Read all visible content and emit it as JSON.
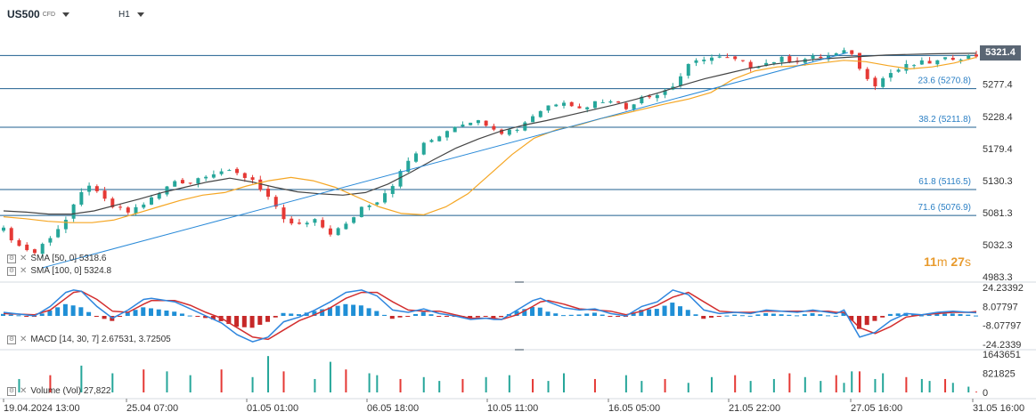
{
  "header": {
    "symbol": "US500",
    "instrument_type": "CFD",
    "timeframe": "H1"
  },
  "price_label": "5321.4",
  "countdown": {
    "minutes": "11",
    "minutes_unit": "m",
    "seconds": "27",
    "seconds_unit": "s"
  },
  "indicators": {
    "sma50": "SMA [50, 0] 5318.6",
    "sma100": "SMA [100, 0] 5324.8",
    "macd": "MACD [14, 30, 7] 2.67531, 3.72505",
    "volume": "Volume (Vol) 27,822"
  },
  "colors": {
    "up": "#26a69a",
    "down": "#e53935",
    "sma50": "#f5a623",
    "sma100": "#444444",
    "trendline": "#2a8ad8",
    "hline": "#1f5f8f",
    "macd_line": "#2e86de",
    "signal_line": "#d32f2f",
    "hist_pos": "#1f8fd6",
    "hist_neg": "#c62828",
    "timer_minutes": "#e89a2c",
    "timer_seconds": "#e89a2c"
  },
  "chart_data": [
    {
      "type": "candlestick",
      "title": "US500 CFD H1",
      "y_ticks": [
        "5321.4",
        "5277.4",
        "5228.4",
        "5179.4",
        "5130.3",
        "5081.3",
        "5032.3",
        "4983.3"
      ],
      "ylim": [
        4983.3,
        5326
      ],
      "x_ticks": [
        "19.04.2024 13:00",
        "25.04 07:00",
        "01.05 01:00",
        "06.05 18:00",
        "10.05 11:00",
        "16.05 05:00",
        "21.05 22:00",
        "27.05 16:00",
        "31.05 16:00"
      ],
      "last_price": 5321.4,
      "levels": [
        {
          "price": 5321.4,
          "label": ""
        },
        {
          "price": 5270.8,
          "label": "23.6 (5270.8)"
        },
        {
          "price": 5211.8,
          "label": "38.2 (5211.8)"
        },
        {
          "price": 5116.5,
          "label": "61.8 (5116.5)"
        },
        {
          "price": 5076.9,
          "label": "71.6 (5076.9)"
        }
      ],
      "close_path": [
        [
          0,
          5055
        ],
        [
          2,
          5030
        ],
        [
          4,
          5020
        ],
        [
          6,
          5045
        ],
        [
          8,
          5070
        ],
        [
          10,
          5110
        ],
        [
          11,
          5125
        ],
        [
          12,
          5110
        ],
        [
          14,
          5090
        ],
        [
          16,
          5082
        ],
        [
          18,
          5095
        ],
        [
          20,
          5110
        ],
        [
          22,
          5130
        ],
        [
          24,
          5128
        ],
        [
          26,
          5140
        ],
        [
          28,
          5145
        ],
        [
          30,
          5140
        ],
        [
          32,
          5132
        ],
        [
          34,
          5105
        ],
        [
          36,
          5068
        ],
        [
          38,
          5062
        ],
        [
          40,
          5068
        ],
        [
          42,
          5050
        ],
        [
          44,
          5062
        ],
        [
          46,
          5090
        ],
        [
          48,
          5100
        ],
        [
          50,
          5125
        ],
        [
          52,
          5160
        ],
        [
          54,
          5185
        ],
        [
          56,
          5200
        ],
        [
          58,
          5215
        ],
        [
          60,
          5222
        ],
        [
          62,
          5218
        ],
        [
          64,
          5205
        ],
        [
          66,
          5210
        ],
        [
          68,
          5230
        ],
        [
          70,
          5245
        ],
        [
          72,
          5253
        ],
        [
          74,
          5240
        ],
        [
          76,
          5250
        ],
        [
          78,
          5255
        ],
        [
          80,
          5240
        ],
        [
          82,
          5260
        ],
        [
          84,
          5262
        ],
        [
          86,
          5275
        ],
        [
          88,
          5305
        ],
        [
          90,
          5318
        ],
        [
          92,
          5318
        ],
        [
          94,
          5314
        ],
        [
          96,
          5305
        ],
        [
          98,
          5310
        ],
        [
          100,
          5316
        ],
        [
          102,
          5314
        ],
        [
          104,
          5318
        ],
        [
          106,
          5320
        ],
        [
          108,
          5326
        ],
        [
          109,
          5326
        ],
        [
          110,
          5300
        ],
        [
          112,
          5278
        ],
        [
          114,
          5295
        ],
        [
          116,
          5305
        ],
        [
          118,
          5310
        ],
        [
          120,
          5312
        ],
        [
          122,
          5318
        ],
        [
          124,
          5320
        ],
        [
          125,
          5321.4
        ]
      ],
      "sma50_values": [
        5075,
        5072,
        5068,
        5066,
        5066,
        5070,
        5080,
        5090,
        5100,
        5108,
        5112,
        5122,
        5130,
        5135,
        5130,
        5120,
        5105,
        5090,
        5080,
        5078,
        5090,
        5110,
        5140,
        5170,
        5195,
        5208,
        5215,
        5225,
        5232,
        5240,
        5248,
        5255,
        5265,
        5285,
        5298,
        5304,
        5306,
        5310,
        5314,
        5312,
        5306,
        5301,
        5304,
        5310,
        5318.6
      ],
      "sma100_values": [
        5084,
        5082,
        5079,
        5079,
        5084,
        5093,
        5102,
        5112,
        5120,
        5128,
        5134,
        5128,
        5120,
        5113,
        5110,
        5108,
        5112,
        5125,
        5143,
        5162,
        5180,
        5194,
        5206,
        5215,
        5222,
        5230,
        5238,
        5246,
        5255,
        5265,
        5276,
        5286,
        5294,
        5302,
        5308,
        5312,
        5316,
        5318,
        5320,
        5322,
        5323,
        5324,
        5324.5,
        5324.8
      ],
      "trendline": {
        "from": {
          "t": 5,
          "price": 4997
        },
        "to": {
          "t": 108.5,
          "price": 5326
        }
      }
    },
    {
      "type": "line",
      "title": "MACD [14, 30, 7]",
      "y_ticks": [
        "24.23392",
        "8.07797",
        "-8.07797",
        "-24.2339"
      ],
      "ylim": [
        -24.2339,
        24.23392
      ],
      "macd_path": [
        [
          0,
          3
        ],
        [
          4,
          0
        ],
        [
          6,
          8
        ],
        [
          8,
          20
        ],
        [
          9,
          22
        ],
        [
          10,
          21
        ],
        [
          12,
          8
        ],
        [
          14,
          -2
        ],
        [
          16,
          5
        ],
        [
          18,
          14
        ],
        [
          19,
          15
        ],
        [
          22,
          12
        ],
        [
          24,
          6
        ],
        [
          26,
          0
        ],
        [
          28,
          -6
        ],
        [
          30,
          -16
        ],
        [
          32,
          -22
        ],
        [
          34,
          -18
        ],
        [
          36,
          -5
        ],
        [
          38,
          -1
        ],
        [
          40,
          5
        ],
        [
          42,
          12
        ],
        [
          44,
          20
        ],
        [
          46,
          22
        ],
        [
          48,
          17
        ],
        [
          50,
          5
        ],
        [
          52,
          3
        ],
        [
          54,
          6
        ],
        [
          56,
          2
        ],
        [
          58,
          0
        ],
        [
          60,
          -3
        ],
        [
          62,
          -2
        ],
        [
          63,
          -3
        ],
        [
          64,
          -3
        ],
        [
          66,
          5
        ],
        [
          68,
          13
        ],
        [
          69,
          15
        ],
        [
          70,
          12
        ],
        [
          72,
          7
        ],
        [
          74,
          5
        ],
        [
          76,
          6
        ],
        [
          78,
          2
        ],
        [
          80,
          0
        ],
        [
          82,
          8
        ],
        [
          84,
          12
        ],
        [
          86,
          22
        ],
        [
          88,
          18
        ],
        [
          90,
          5
        ],
        [
          92,
          2
        ],
        [
          94,
          3
        ],
        [
          96,
          2
        ],
        [
          98,
          5
        ],
        [
          100,
          4
        ],
        [
          102,
          3
        ],
        [
          104,
          5
        ],
        [
          106,
          3
        ],
        [
          107,
          2
        ],
        [
          108,
          5
        ],
        [
          110,
          -18
        ],
        [
          112,
          -14
        ],
        [
          114,
          -4
        ],
        [
          116,
          2
        ],
        [
          118,
          1
        ],
        [
          120,
          3
        ],
        [
          122,
          4
        ],
        [
          124,
          3
        ],
        [
          125,
          2.67531
        ]
      ],
      "signal_path": [
        [
          0,
          2
        ],
        [
          4,
          1
        ],
        [
          6,
          5
        ],
        [
          8,
          15
        ],
        [
          9,
          20
        ],
        [
          10,
          21
        ],
        [
          12,
          14
        ],
        [
          14,
          4
        ],
        [
          16,
          3
        ],
        [
          18,
          10
        ],
        [
          19,
          13
        ],
        [
          22,
          13
        ],
        [
          24,
          9
        ],
        [
          26,
          3
        ],
        [
          28,
          -2
        ],
        [
          30,
          -10
        ],
        [
          32,
          -18
        ],
        [
          34,
          -20
        ],
        [
          36,
          -12
        ],
        [
          38,
          -4
        ],
        [
          40,
          1
        ],
        [
          42,
          7
        ],
        [
          44,
          15
        ],
        [
          46,
          20
        ],
        [
          48,
          20
        ],
        [
          50,
          12
        ],
        [
          52,
          5
        ],
        [
          54,
          4
        ],
        [
          56,
          4
        ],
        [
          58,
          1
        ],
        [
          60,
          -2
        ],
        [
          62,
          -2
        ],
        [
          63,
          -2
        ],
        [
          64,
          -3
        ],
        [
          66,
          1
        ],
        [
          68,
          8
        ],
        [
          69,
          12
        ],
        [
          70,
          13
        ],
        [
          72,
          10
        ],
        [
          74,
          6
        ],
        [
          76,
          5
        ],
        [
          78,
          4
        ],
        [
          80,
          1
        ],
        [
          82,
          4
        ],
        [
          84,
          9
        ],
        [
          86,
          16
        ],
        [
          88,
          20
        ],
        [
          90,
          12
        ],
        [
          92,
          4
        ],
        [
          94,
          3
        ],
        [
          96,
          3
        ],
        [
          98,
          4
        ],
        [
          100,
          4
        ],
        [
          102,
          4
        ],
        [
          104,
          4
        ],
        [
          106,
          4
        ],
        [
          107,
          3
        ],
        [
          108,
          3
        ],
        [
          110,
          -10
        ],
        [
          112,
          -15
        ],
        [
          114,
          -9
        ],
        [
          116,
          -1
        ],
        [
          118,
          1
        ],
        [
          120,
          2
        ],
        [
          122,
          3
        ],
        [
          124,
          3
        ],
        [
          125,
          3.72505
        ]
      ]
    },
    {
      "type": "bar",
      "title": "Volume (Vol)",
      "y_ticks": [
        "1643651",
        "821825",
        "0"
      ],
      "ylim": [
        0,
        1643651
      ],
      "last_value": 27822,
      "bars": [
        [
          2,
          0.35
        ],
        [
          6,
          0.45
        ],
        [
          10,
          0.7
        ],
        [
          14,
          0.5
        ],
        [
          18,
          0.6
        ],
        [
          21,
          0.55
        ],
        [
          24,
          0.45
        ],
        [
          28,
          0.6
        ],
        [
          32,
          0.4
        ],
        [
          34,
          0.95
        ],
        [
          36,
          0.55
        ],
        [
          40,
          0.35
        ],
        [
          42,
          0.8
        ],
        [
          44,
          0.6
        ],
        [
          47,
          0.5
        ],
        [
          48,
          0.45
        ],
        [
          51,
          0.35
        ],
        [
          54,
          0.4
        ],
        [
          56,
          0.3
        ],
        [
          59,
          0.35
        ],
        [
          62,
          0.4
        ],
        [
          65,
          0.45
        ],
        [
          68,
          0.35
        ],
        [
          70,
          0.3
        ],
        [
          72,
          0.5
        ],
        [
          76,
          0.35
        ],
        [
          80,
          0.45
        ],
        [
          82,
          0.3
        ],
        [
          85,
          0.35
        ],
        [
          88,
          0.25
        ],
        [
          91,
          0.4
        ],
        [
          94,
          0.45
        ],
        [
          96,
          0.3
        ],
        [
          99,
          0.35
        ],
        [
          101,
          0.5
        ],
        [
          103,
          0.4
        ],
        [
          105,
          0.3
        ],
        [
          107,
          0.45
        ],
        [
          108,
          0.25
        ],
        [
          109,
          0.55
        ],
        [
          110,
          0.55
        ],
        [
          112,
          0.35
        ],
        [
          113,
          0.5
        ],
        [
          116,
          0.4
        ],
        [
          118,
          0.35
        ],
        [
          119,
          0.3
        ],
        [
          121,
          0.35
        ],
        [
          122,
          0.25
        ],
        [
          124,
          0.15
        ],
        [
          125,
          0.02
        ]
      ]
    }
  ]
}
